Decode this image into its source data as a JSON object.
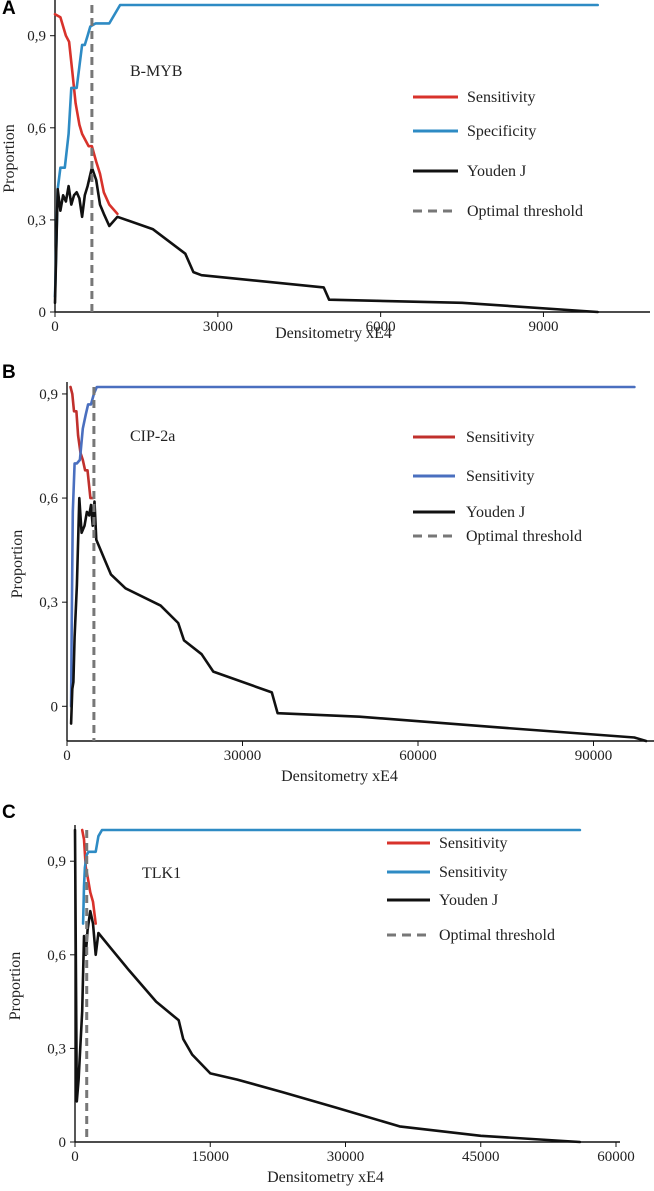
{
  "chart_data": [
    {
      "panel": "A",
      "type": "line",
      "annotation": "B-MYB",
      "xlabel": "Densitometry xE4",
      "ylabel": "Proportion",
      "xlim": [
        0,
        11000
      ],
      "ylim": [
        0,
        1.0
      ],
      "xticks": [
        0,
        3000,
        6000,
        9000
      ],
      "xtick_labels": [
        "0",
        "3000",
        "6000",
        "9000"
      ],
      "yticks": [
        0,
        0.3,
        0.6,
        0.9
      ],
      "ytick_labels": [
        "0",
        "0,3",
        "0,6",
        "0,9"
      ],
      "legend_position": "right",
      "threshold": 680,
      "legend": [
        "Sensitivity",
        "Specificity",
        "Youden J",
        "Optimal threshold"
      ],
      "series": [
        {
          "name": "Sensitivity",
          "color": "#d8322b",
          "x": [
            0,
            100,
            200,
            260,
            320,
            380,
            450,
            500,
            560,
            620,
            680,
            760,
            830,
            900,
            1000,
            1150
          ],
          "y": [
            0.97,
            0.96,
            0.9,
            0.88,
            0.78,
            0.68,
            0.61,
            0.58,
            0.56,
            0.54,
            0.54,
            0.49,
            0.45,
            0.39,
            0.35,
            0.32
          ]
        },
        {
          "name": "Specificity",
          "color": "#2e8bc4",
          "x": [
            0,
            50,
            100,
            180,
            250,
            300,
            350,
            400,
            450,
            500,
            550,
            600,
            650,
            750,
            1000,
            1200,
            5000,
            10000
          ],
          "y": [
            0.05,
            0.4,
            0.47,
            0.47,
            0.58,
            0.73,
            0.73,
            0.73,
            0.8,
            0.87,
            0.87,
            0.9,
            0.93,
            0.94,
            0.94,
            1.0,
            1.0,
            1.0
          ]
        },
        {
          "name": "Youden J",
          "color": "#111111",
          "x": [
            0,
            50,
            100,
            150,
            200,
            250,
            300,
            350,
            400,
            450,
            500,
            550,
            600,
            680,
            760,
            830,
            900,
            1000,
            1150,
            1800,
            2400,
            2550,
            2700,
            4950,
            5050,
            7500,
            10000
          ],
          "y": [
            0.03,
            0.4,
            0.33,
            0.38,
            0.36,
            0.41,
            0.35,
            0.38,
            0.39,
            0.37,
            0.31,
            0.38,
            0.41,
            0.47,
            0.43,
            0.35,
            0.32,
            0.28,
            0.31,
            0.27,
            0.19,
            0.13,
            0.12,
            0.08,
            0.04,
            0.03,
            0.0
          ]
        }
      ]
    },
    {
      "panel": "B",
      "type": "line",
      "annotation": "CIP-2a",
      "xlabel": "Densitometry xE4",
      "ylabel": "Proportion",
      "xlim": [
        0,
        100000
      ],
      "ylim": [
        -0.1,
        0.92
      ],
      "xticks": [
        0,
        30000,
        60000,
        90000
      ],
      "xtick_labels": [
        "0",
        "30000",
        "60000",
        "90000"
      ],
      "yticks": [
        0,
        0.3,
        0.6,
        0.9
      ],
      "ytick_labels": [
        "0",
        "0,3",
        "0,6",
        "0,9"
      ],
      "legend_position": "right",
      "threshold": 4600,
      "legend": [
        "Sensitivity",
        "Sensitivity",
        "Youden J",
        "Optimal threshold"
      ],
      "series": [
        {
          "name": "Sensitivity",
          "color": "#c0302c",
          "x": [
            600,
            900,
            1200,
            1600,
            1900,
            2300,
            2700,
            3100,
            3500,
            4000,
            4400
          ],
          "y": [
            0.92,
            0.9,
            0.85,
            0.85,
            0.78,
            0.73,
            0.71,
            0.68,
            0.68,
            0.6,
            0.6
          ]
        },
        {
          "name": "Sensitivity",
          "color": "#4a6fbf",
          "x": [
            700,
            800,
            1000,
            1300,
            1700,
            2200,
            2700,
            3200,
            3600,
            4100,
            4600,
            5100,
            20000,
            60000,
            97000
          ],
          "y": [
            0.0,
            0.23,
            0.56,
            0.7,
            0.7,
            0.71,
            0.8,
            0.84,
            0.87,
            0.87,
            0.9,
            0.92,
            0.92,
            0.92,
            0.92
          ]
        },
        {
          "name": "Youden J",
          "color": "#111111",
          "x": [
            700,
            900,
            1100,
            1300,
            1700,
            2100,
            2500,
            3000,
            3400,
            3800,
            4100,
            4400,
            4700,
            5000,
            5500,
            6500,
            7500,
            10000,
            16000,
            19000,
            20000,
            23000,
            25000,
            35000,
            36000,
            50000,
            73000,
            97000,
            99000
          ],
          "y": [
            -0.05,
            0.05,
            0.07,
            0.2,
            0.35,
            0.6,
            0.5,
            0.52,
            0.56,
            0.55,
            0.58,
            0.52,
            0.59,
            0.48,
            0.46,
            0.42,
            0.38,
            0.34,
            0.29,
            0.24,
            0.19,
            0.15,
            0.1,
            0.04,
            -0.02,
            -0.03,
            -0.06,
            -0.09,
            -0.1
          ]
        }
      ]
    },
    {
      "panel": "C",
      "type": "line",
      "annotation": "TLK1",
      "xlabel": "Densitometry xE4",
      "ylabel": "Proportion",
      "xlim": [
        0,
        60000
      ],
      "ylim": [
        0,
        1.0
      ],
      "xticks": [
        0,
        15000,
        30000,
        45000,
        60000
      ],
      "xtick_labels": [
        "0",
        "15000",
        "30000",
        "45000",
        "60000"
      ],
      "yticks": [
        0,
        0.3,
        0.6,
        0.9
      ],
      "ytick_labels": [
        "0",
        "0,3",
        "0,6",
        "0,9"
      ],
      "legend_position": "right",
      "threshold": 1300,
      "legend": [
        "Sensitivity",
        "Sensitivity",
        "Youden J",
        "Optimal threshold"
      ],
      "series": [
        {
          "name": "Sensitivity",
          "color": "#d8322b",
          "x": [
            800,
            1000,
            1200,
            1400,
            1700,
            2000,
            2300
          ],
          "y": [
            1.0,
            0.97,
            0.88,
            0.85,
            0.8,
            0.77,
            0.7
          ]
        },
        {
          "name": "Sensitivity",
          "color": "#2e8bc4",
          "x": [
            900,
            1000,
            1100,
            1300,
            1500,
            1700,
            2000,
            2300,
            2600,
            3000,
            30000,
            56000
          ],
          "y": [
            0.7,
            0.82,
            0.88,
            0.92,
            0.93,
            0.93,
            0.93,
            0.93,
            0.98,
            1.0,
            1.0,
            1.0
          ]
        },
        {
          "name": "Youden J",
          "color": "#111111",
          "x": [
            0,
            200,
            400,
            800,
            1000,
            1200,
            1400,
            1700,
            2000,
            2300,
            2600,
            4000,
            6000,
            9000,
            11500,
            12000,
            13000,
            15000,
            18000,
            23000,
            29000,
            36000,
            45000,
            56000
          ],
          "y": [
            1.0,
            0.13,
            0.2,
            0.42,
            0.66,
            0.6,
            0.68,
            0.74,
            0.7,
            0.6,
            0.67,
            0.62,
            0.55,
            0.45,
            0.39,
            0.33,
            0.28,
            0.22,
            0.2,
            0.16,
            0.11,
            0.05,
            0.02,
            0.0
          ]
        }
      ]
    }
  ]
}
